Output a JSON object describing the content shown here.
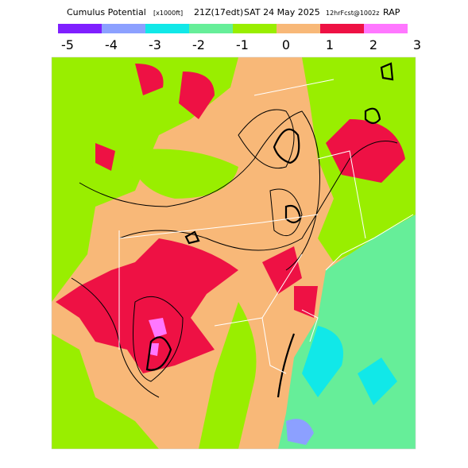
{
  "header": {
    "title": "Cumulus Potential",
    "units": "[x1000ft]",
    "valid": "21Z(17edt)",
    "date": "SAT 24 May 2025",
    "forecast": "12hrFcst@1002z",
    "model": "RAP"
  },
  "colorbar": {
    "labels": [
      -5,
      -4,
      -3,
      -2,
      -1,
      0,
      1,
      2,
      3
    ],
    "colors": [
      "#7f1fff",
      "#8ca0ff",
      "#11e8e8",
      "#66ee99",
      "#99ee00",
      "#f8b878",
      "#ee1144",
      "#ff77ff"
    ]
  }
}
